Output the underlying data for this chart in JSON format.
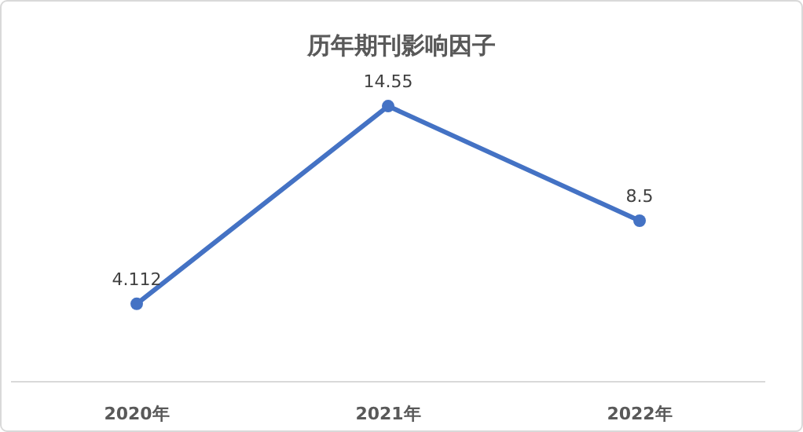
{
  "chart_data": {
    "type": "line",
    "title": "历年期刊影响因子",
    "categories": [
      "2020年",
      "2021年",
      "2022年"
    ],
    "series": [
      {
        "color": "#4472c4",
        "values": [
          4.112,
          14.55,
          8.5
        ]
      }
    ],
    "marker": "circle",
    "data_labels": true
  }
}
